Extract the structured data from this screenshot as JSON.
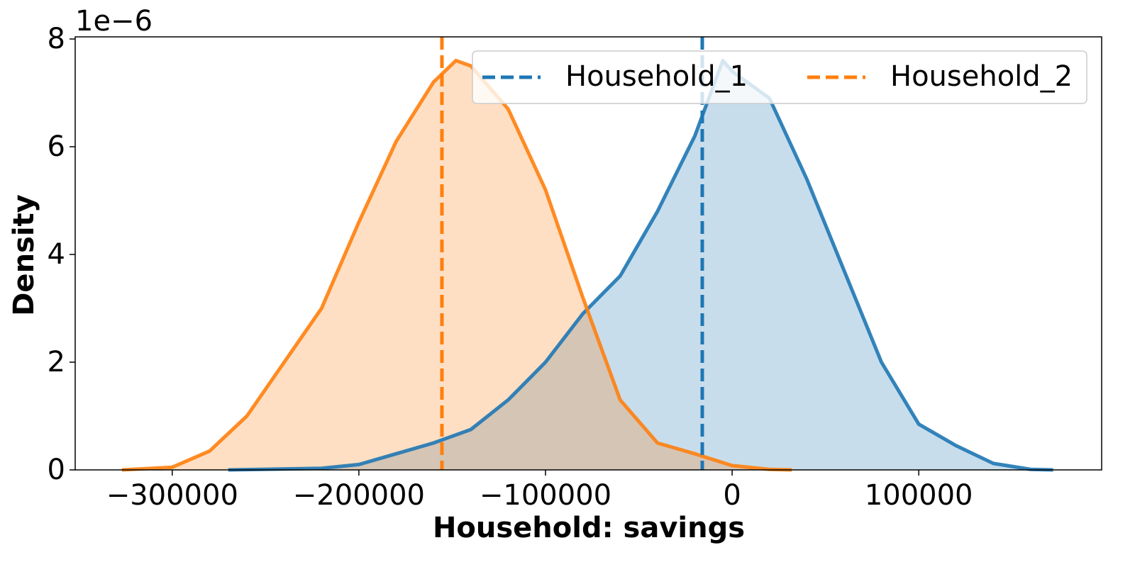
{
  "chart_data": {
    "type": "density",
    "x_label": "Household: savings",
    "y_label": "Density",
    "y_offset_label": "1e−6",
    "xlim": [
      -352000,
      198000
    ],
    "ylim": [
      0,
      8.04
    ],
    "xticks": [
      {
        "value": -300000,
        "label": "−300000"
      },
      {
        "value": -200000,
        "label": "−200000"
      },
      {
        "value": -100000,
        "label": "−100000"
      },
      0,
      100000
    ],
    "yticks": [
      0,
      2,
      4,
      6,
      8
    ],
    "legend": "upper right",
    "fill_alpha": 0.25,
    "series": [
      {
        "name": "Household_1",
        "color": "#1f77b4",
        "mean": -16000,
        "x": [
          -270000,
          -220000,
          -200000,
          -180000,
          -160000,
          -140000,
          -120000,
          -100000,
          -80000,
          -60000,
          -40000,
          -20000,
          -5000,
          0,
          20000,
          40000,
          60000,
          80000,
          100000,
          120000,
          140000,
          160000,
          172000
        ],
        "values": [
          0,
          0.03,
          0.1,
          0.3,
          0.5,
          0.75,
          1.3,
          2.0,
          2.9,
          3.6,
          4.8,
          6.2,
          7.6,
          7.4,
          6.9,
          5.4,
          3.7,
          2.0,
          0.85,
          0.45,
          0.12,
          0.01,
          0
        ]
      },
      {
        "name": "Household_2",
        "color": "#ff7f0e",
        "mean": -155500,
        "x": [
          -327000,
          -300000,
          -280000,
          -260000,
          -240000,
          -220000,
          -200000,
          -180000,
          -160000,
          -148000,
          -140000,
          -120000,
          -100000,
          -80000,
          -60000,
          -40000,
          -20000,
          0,
          20000,
          32000
        ],
        "values": [
          0,
          0.05,
          0.35,
          1.0,
          2.0,
          3.0,
          4.6,
          6.1,
          7.2,
          7.6,
          7.5,
          6.7,
          5.2,
          3.2,
          1.3,
          0.5,
          0.3,
          0.08,
          0.01,
          0
        ]
      }
    ]
  }
}
